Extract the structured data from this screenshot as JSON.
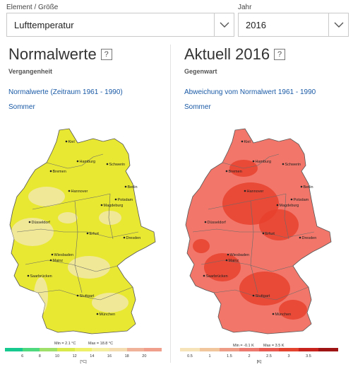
{
  "element_select": {
    "label": "Element / Größe",
    "value": "Lufttemperatur"
  },
  "year_select": {
    "label": "Jahr",
    "value": "2016"
  },
  "left": {
    "title": "Normalwerte",
    "help": "?",
    "subtitle": "Vergangenheit",
    "link": "Normalwerte (Zeitraum 1961 - 1990)",
    "season": "Sommer",
    "min_label": "Min = 2.1 °C",
    "max_label": "Max = 18.8 °C",
    "ticks": [
      "6",
      "8",
      "10",
      "12",
      "14",
      "16",
      "18",
      "20"
    ],
    "unit": "[°C]",
    "legend_colors": [
      "#15c98f",
      "#4fd97e",
      "#9ee06a",
      "#d9e84a",
      "#eef06a",
      "#f3eea0",
      "#f4ddb0",
      "#f0b39a",
      "#ef9f8b"
    ],
    "map_fill": "#e8e832",
    "map_fill2": "#f1e7a8"
  },
  "right": {
    "title": "Aktuell 2016",
    "help": "?",
    "subtitle": "Gegenwart",
    "link": "Abweichung vom Normalwert 1961 - 1990",
    "season": "Sommer",
    "min_label": "Min = -0.1 K",
    "max_label": "Max = 3.5 K",
    "ticks": [
      "0.5",
      "1",
      "1.5",
      "2",
      "2.5",
      "3",
      "3.5"
    ],
    "unit": "[K]",
    "legend_colors": [
      "#f6e4b8",
      "#f2c69c",
      "#ef9c86",
      "#ec7a6e",
      "#e85a4f",
      "#e24430",
      "#c8231c",
      "#9e1414"
    ],
    "map_fill": "#f2776a",
    "map_fill2": "#e8412e"
  },
  "cities": [
    {
      "name": "Kiel"
    },
    {
      "name": "Hamburg"
    },
    {
      "name": "Schwerin"
    },
    {
      "name": "Bremen"
    },
    {
      "name": "Hannover"
    },
    {
      "name": "Berlin"
    },
    {
      "name": "Potsdam"
    },
    {
      "name": "Magdeburg"
    },
    {
      "name": "Düsseldorf"
    },
    {
      "name": "Erfurt"
    },
    {
      "name": "Dresden"
    },
    {
      "name": "Wiesbaden"
    },
    {
      "name": "Mainz"
    },
    {
      "name": "Saarbrücken"
    },
    {
      "name": "Stuttgart"
    },
    {
      "name": "München"
    }
  ]
}
